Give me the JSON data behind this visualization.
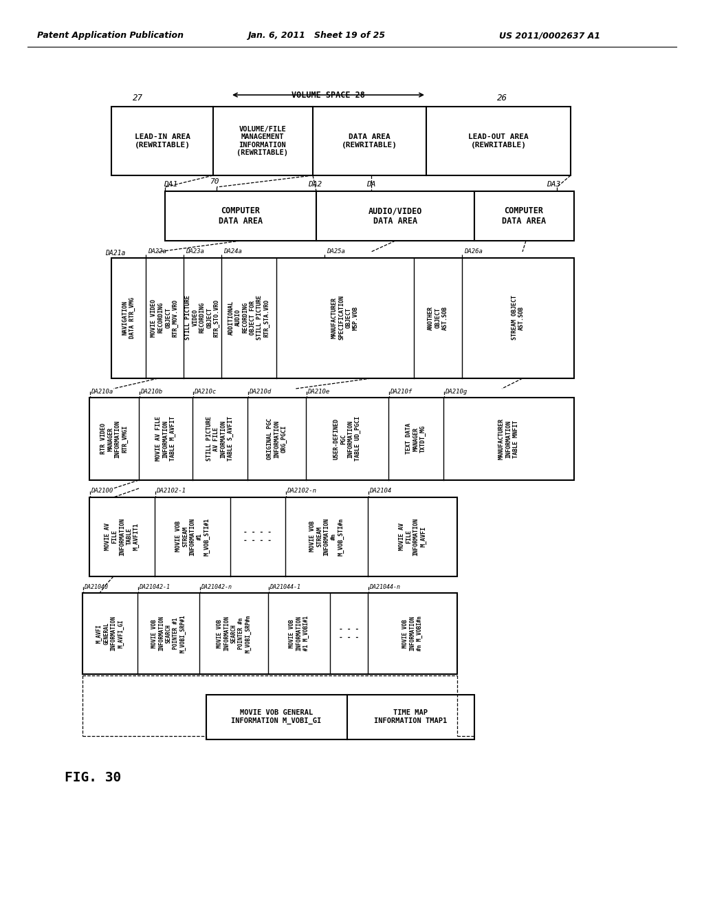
{
  "title_left": "Patent Application Publication",
  "title_mid": "Jan. 6, 2011   Sheet 19 of 25",
  "title_right": "US 2011/0002637 A1",
  "fig_label": "FIG. 30",
  "background": "#ffffff"
}
